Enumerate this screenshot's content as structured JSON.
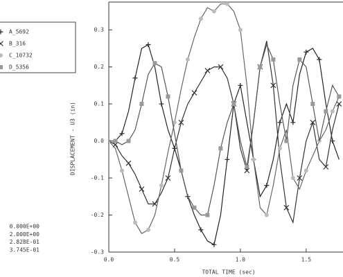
{
  "chart_data": {
    "type": "line",
    "xlabel": "TOTAL TIME (sec)",
    "ylabel": "DISPLACEMENT - U3 (in)",
    "x": [
      0,
      0.05,
      0.1,
      0.15,
      0.2,
      0.25,
      0.3,
      0.35,
      0.4,
      0.45,
      0.5,
      0.55,
      0.6,
      0.65,
      0.7,
      0.75,
      0.8,
      0.85,
      0.9,
      0.95,
      1.0,
      1.05,
      1.1,
      1.15,
      1.2,
      1.25,
      1.3,
      1.35,
      1.4,
      1.45,
      1.5,
      1.55,
      1.6,
      1.65,
      1.7,
      1.75
    ],
    "series": [
      {
        "name": "A_5692",
        "color": "#222222",
        "marker": "plus",
        "marker_color": "#222222",
        "values": [
          0,
          0,
          0.02,
          0.08,
          0.17,
          0.25,
          0.26,
          0.2,
          0.1,
          0.03,
          -0.02,
          -0.08,
          -0.15,
          -0.2,
          -0.24,
          -0.27,
          -0.28,
          -0.2,
          -0.05,
          0.1,
          0.15,
          0.05,
          -0.05,
          -0.15,
          -0.12,
          -0.05,
          0.05,
          0.1,
          0.05,
          0.18,
          0.24,
          0.25,
          0.22,
          0.1,
          0.0,
          -0.05
        ]
      },
      {
        "name": "B_316",
        "color": "#333333",
        "marker": "cross",
        "marker_color": "#333333",
        "values": [
          0,
          -0.01,
          -0.04,
          -0.06,
          -0.09,
          -0.13,
          -0.17,
          -0.17,
          -0.14,
          -0.1,
          -0.02,
          0.05,
          0.1,
          0.13,
          0.16,
          0.19,
          0.2,
          0.2,
          0.17,
          0.1,
          -0.02,
          -0.08,
          0.05,
          0.2,
          0.27,
          0.15,
          -0.05,
          -0.18,
          -0.22,
          -0.1,
          0.0,
          0.05,
          -0.05,
          -0.07,
          0.03,
          0.1
        ]
      },
      {
        "name": "C_10732",
        "color": "#666666",
        "marker": "circle",
        "marker_color": "#bbbbbb",
        "values": [
          0,
          -0.02,
          -0.08,
          -0.15,
          -0.22,
          -0.25,
          -0.24,
          -0.2,
          -0.12,
          -0.03,
          0.05,
          0.14,
          0.22,
          0.28,
          0.33,
          0.36,
          0.35,
          0.37,
          0.37,
          0.35,
          0.3,
          0.15,
          -0.05,
          -0.18,
          -0.2,
          -0.12,
          -0.02,
          0.03,
          -0.1,
          -0.13,
          -0.08,
          -0.04,
          0.0,
          0.03,
          0.08,
          0.12
        ]
      },
      {
        "name": "D_5356",
        "color": "#555555",
        "marker": "square",
        "marker_color": "#999999",
        "values": [
          0,
          0.0,
          -0.01,
          0.0,
          0.03,
          0.1,
          0.18,
          0.21,
          0.2,
          0.12,
          0.02,
          -0.08,
          -0.15,
          -0.18,
          -0.2,
          -0.2,
          -0.12,
          -0.02,
          0.05,
          0.1,
          0.0,
          -0.07,
          0.05,
          0.2,
          0.26,
          0.22,
          0.1,
          0.0,
          0.15,
          0.22,
          0.2,
          0.1,
          0.0,
          0.08,
          0.15,
          0.12
        ]
      }
    ],
    "xlim": [
      0,
      1.78
    ],
    "ylim": [
      -0.3,
      0.375
    ],
    "xticks": [
      {
        "value": 0,
        "label": "0.0"
      },
      0.5,
      {
        "value": 1,
        "label": "1.0"
      },
      1.5
    ],
    "yticks": [
      -0.3,
      -0.2,
      -0.1,
      {
        "value": 0,
        "label": "0.0"
      },
      0.1,
      0.2,
      0.3
    ],
    "annotations": [
      "0.000E+00",
      "2.000E+00",
      "2.828E-01",
      "3.745E-01"
    ]
  }
}
